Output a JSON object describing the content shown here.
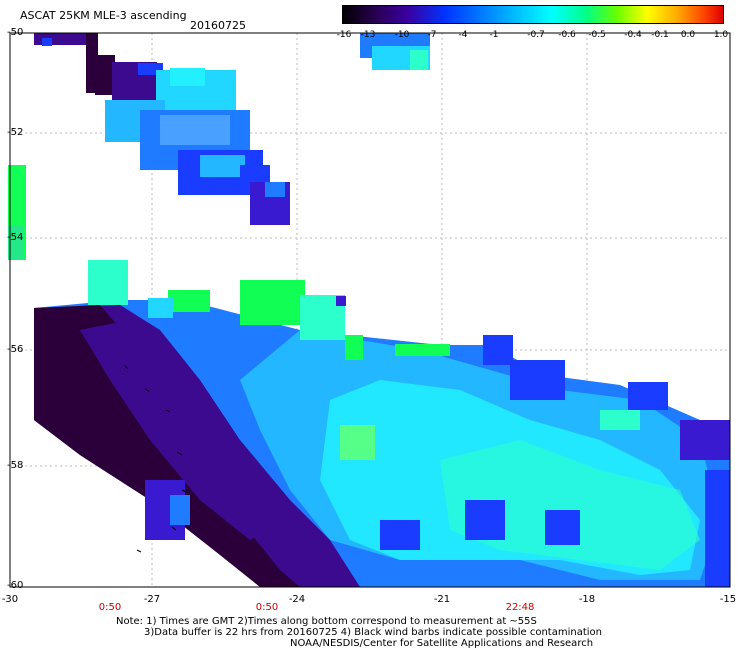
{
  "header": {
    "title": "ASCAT 25KM MLE-3 ascending",
    "date": "20160725"
  },
  "colorbar": {
    "ticks": [
      "-16",
      "-13",
      "-10",
      "-7",
      "-4",
      "-1",
      "-0.7",
      "-0.6",
      "-0.5",
      "-0.4",
      "-0.1",
      "0.0",
      "1.0"
    ]
  },
  "axes": {
    "y_labels": [
      "-50",
      "-52",
      "-54",
      "-56",
      "-58",
      "-60"
    ],
    "x_labels": [
      "-30",
      "-27",
      "-24",
      "-21",
      "-18",
      "-15"
    ],
    "time_labels": [
      "0:50",
      "0:50",
      "22:48"
    ]
  },
  "notes": {
    "line1": "Note: 1) Times are GMT 2)Times along bottom correspond to measurement at ~55S",
    "line2": "3)Data buffer is 22 hrs from 20160725 4) Black wind barbs indicate possible contamination",
    "line3": "NOAA/NESDIS/Center for Satellite Applications and Research"
  },
  "palette": {
    "dark": "#2b003a",
    "purple": "#3b0a8f",
    "indigo": "#3a1ad0",
    "blue": "#1a3cff",
    "midblue": "#1f7bff",
    "lightblue": "#22b7ff",
    "cyan": "#22f0ff",
    "aqua": "#2cffcc",
    "green": "#11ff55"
  }
}
